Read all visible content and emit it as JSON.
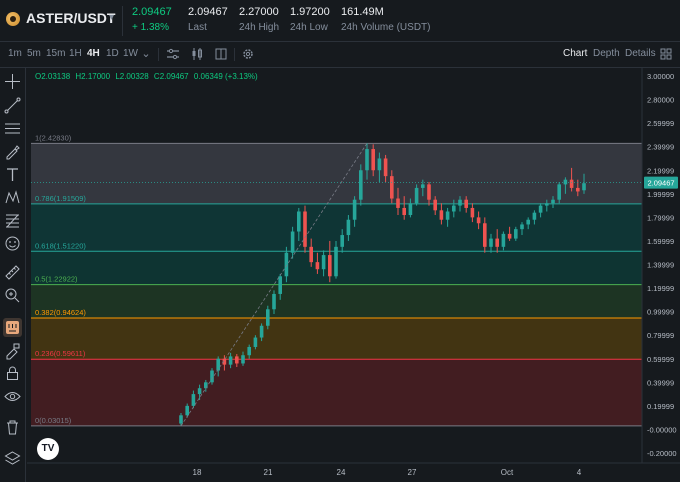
{
  "header": {
    "pair": "ASTER/USDT",
    "last_price": "2.09467",
    "change_pct": "+ 1.38%",
    "stats": [
      {
        "value": "2.09467",
        "label": "Last"
      },
      {
        "value": "2.27000",
        "label": "24h High"
      },
      {
        "value": "1.97200",
        "label": "24h Low"
      },
      {
        "value": "161.49M",
        "label": "24h Volume (USDT)"
      }
    ]
  },
  "toolbar": {
    "timeframes": [
      "1m",
      "5m",
      "15m",
      "1H",
      "4H",
      "1D",
      "1W"
    ],
    "active_timeframe": "4H",
    "view_tabs": [
      "Chart",
      "Depth",
      "Details"
    ],
    "active_view": "Chart"
  },
  "ohlc": {
    "open": "O2.03138",
    "high": "H2.17000",
    "low": "L2.00328",
    "close": "C2.09467",
    "change": "0.06349 (+3.13%)"
  },
  "price_axis": {
    "labels": [
      "3.00000",
      "2.80000",
      "2.59999",
      "2.39999",
      "2.19999",
      "1.99999",
      "1.79999",
      "1.59999",
      "1.39999",
      "1.19999",
      "0.99999",
      "0.79999",
      "0.59999",
      "0.39999",
      "0.19999",
      "-0.00000",
      "-0.20000"
    ],
    "current_price": "2.09467"
  },
  "time_axis": {
    "labels": [
      "18",
      "21",
      "24",
      "27",
      "Oct",
      "4"
    ]
  },
  "fibonacci": {
    "levels": [
      {
        "label": "1(2.42830)",
        "price": 2.4283,
        "color": "#787b86"
      },
      {
        "label": "0.786(1.91509)",
        "price": 1.91509,
        "color": "#26a69a"
      },
      {
        "label": "0.618(1.51220)",
        "price": 1.5122,
        "color": "#26a69a"
      },
      {
        "label": "0.5(1.22922)",
        "price": 1.22922,
        "color": "#4caf50"
      },
      {
        "label": "0.382(0.94624)",
        "price": 0.94624,
        "color": "#ff9800"
      },
      {
        "label": "0.236(0.59611)",
        "price": 0.59611,
        "color": "#f23645"
      },
      {
        "label": "0(0.03015)",
        "price": 0.03015,
        "color": "#787b86"
      }
    ],
    "zone_colors": [
      "#3a3d45",
      "#0e3b3a",
      "#0d3a36",
      "#1e3a24",
      "#4a3a10",
      "#4a1e22"
    ]
  },
  "chart_data": {
    "type": "candlestick",
    "series": [
      {
        "o": 0.05,
        "h": 0.14,
        "l": 0.03,
        "c": 0.12
      },
      {
        "o": 0.12,
        "h": 0.22,
        "l": 0.1,
        "c": 0.2
      },
      {
        "o": 0.2,
        "h": 0.33,
        "l": 0.18,
        "c": 0.3
      },
      {
        "o": 0.3,
        "h": 0.38,
        "l": 0.25,
        "c": 0.35
      },
      {
        "o": 0.35,
        "h": 0.42,
        "l": 0.32,
        "c": 0.4
      },
      {
        "o": 0.4,
        "h": 0.52,
        "l": 0.38,
        "c": 0.5
      },
      {
        "o": 0.5,
        "h": 0.62,
        "l": 0.45,
        "c": 0.6
      },
      {
        "o": 0.6,
        "h": 0.63,
        "l": 0.5,
        "c": 0.55
      },
      {
        "o": 0.55,
        "h": 0.65,
        "l": 0.52,
        "c": 0.62
      },
      {
        "o": 0.62,
        "h": 0.64,
        "l": 0.53,
        "c": 0.56
      },
      {
        "o": 0.56,
        "h": 0.66,
        "l": 0.54,
        "c": 0.63
      },
      {
        "o": 0.63,
        "h": 0.72,
        "l": 0.6,
        "c": 0.7
      },
      {
        "o": 0.7,
        "h": 0.8,
        "l": 0.68,
        "c": 0.78
      },
      {
        "o": 0.78,
        "h": 0.9,
        "l": 0.75,
        "c": 0.88
      },
      {
        "o": 0.88,
        "h": 1.05,
        "l": 0.85,
        "c": 1.02
      },
      {
        "o": 1.02,
        "h": 1.18,
        "l": 0.98,
        "c": 1.15
      },
      {
        "o": 1.15,
        "h": 1.32,
        "l": 1.1,
        "c": 1.3
      },
      {
        "o": 1.3,
        "h": 1.55,
        "l": 1.25,
        "c": 1.5
      },
      {
        "o": 1.5,
        "h": 1.72,
        "l": 1.45,
        "c": 1.68
      },
      {
        "o": 1.68,
        "h": 1.88,
        "l": 1.6,
        "c": 1.85
      },
      {
        "o": 1.85,
        "h": 1.9,
        "l": 1.5,
        "c": 1.55
      },
      {
        "o": 1.55,
        "h": 1.62,
        "l": 1.38,
        "c": 1.42
      },
      {
        "o": 1.42,
        "h": 1.5,
        "l": 1.32,
        "c": 1.36
      },
      {
        "o": 1.36,
        "h": 1.52,
        "l": 1.3,
        "c": 1.48
      },
      {
        "o": 1.48,
        "h": 1.6,
        "l": 1.25,
        "c": 1.3
      },
      {
        "o": 1.3,
        "h": 1.6,
        "l": 1.28,
        "c": 1.55
      },
      {
        "o": 1.55,
        "h": 1.7,
        "l": 1.5,
        "c": 1.65
      },
      {
        "o": 1.65,
        "h": 1.82,
        "l": 1.6,
        "c": 1.78
      },
      {
        "o": 1.78,
        "h": 1.98,
        "l": 1.72,
        "c": 1.95
      },
      {
        "o": 1.95,
        "h": 2.25,
        "l": 1.9,
        "c": 2.2
      },
      {
        "o": 2.2,
        "h": 2.43,
        "l": 2.12,
        "c": 2.38
      },
      {
        "o": 2.38,
        "h": 2.42,
        "l": 2.15,
        "c": 2.2
      },
      {
        "o": 2.2,
        "h": 2.35,
        "l": 2.1,
        "c": 2.3
      },
      {
        "o": 2.3,
        "h": 2.33,
        "l": 2.1,
        "c": 2.15
      },
      {
        "o": 2.15,
        "h": 2.2,
        "l": 1.92,
        "c": 1.96
      },
      {
        "o": 1.96,
        "h": 2.05,
        "l": 1.82,
        "c": 1.88
      },
      {
        "o": 1.88,
        "h": 1.98,
        "l": 1.78,
        "c": 1.82
      },
      {
        "o": 1.82,
        "h": 1.96,
        "l": 1.8,
        "c": 1.92
      },
      {
        "o": 1.92,
        "h": 2.08,
        "l": 1.9,
        "c": 2.05
      },
      {
        "o": 2.05,
        "h": 2.12,
        "l": 1.98,
        "c": 2.08
      },
      {
        "o": 2.08,
        "h": 2.1,
        "l": 1.9,
        "c": 1.95
      },
      {
        "o": 1.95,
        "h": 1.98,
        "l": 1.82,
        "c": 1.86
      },
      {
        "o": 1.86,
        "h": 1.92,
        "l": 1.74,
        "c": 1.78
      },
      {
        "o": 1.78,
        "h": 1.88,
        "l": 1.72,
        "c": 1.85
      },
      {
        "o": 1.85,
        "h": 1.95,
        "l": 1.8,
        "c": 1.9
      },
      {
        "o": 1.9,
        "h": 1.98,
        "l": 1.85,
        "c": 1.95
      },
      {
        "o": 1.95,
        "h": 1.98,
        "l": 1.84,
        "c": 1.88
      },
      {
        "o": 1.88,
        "h": 1.92,
        "l": 1.76,
        "c": 1.8
      },
      {
        "o": 1.8,
        "h": 1.85,
        "l": 1.7,
        "c": 1.75
      },
      {
        "o": 1.75,
        "h": 1.8,
        "l": 1.5,
        "c": 1.55
      },
      {
        "o": 1.55,
        "h": 1.66,
        "l": 1.5,
        "c": 1.62
      },
      {
        "o": 1.62,
        "h": 1.7,
        "l": 1.5,
        "c": 1.55
      },
      {
        "o": 1.55,
        "h": 1.68,
        "l": 1.52,
        "c": 1.66
      },
      {
        "o": 1.66,
        "h": 1.72,
        "l": 1.6,
        "c": 1.62
      },
      {
        "o": 1.62,
        "h": 1.72,
        "l": 1.6,
        "c": 1.7
      },
      {
        "o": 1.7,
        "h": 1.76,
        "l": 1.65,
        "c": 1.74
      },
      {
        "o": 1.74,
        "h": 1.8,
        "l": 1.7,
        "c": 1.78
      },
      {
        "o": 1.78,
        "h": 1.86,
        "l": 1.74,
        "c": 1.84
      },
      {
        "o": 1.84,
        "h": 1.92,
        "l": 1.8,
        "c": 1.9
      },
      {
        "o": 1.9,
        "h": 1.95,
        "l": 1.85,
        "c": 1.92
      },
      {
        "o": 1.92,
        "h": 1.98,
        "l": 1.88,
        "c": 1.95
      },
      {
        "o": 1.95,
        "h": 2.1,
        "l": 1.92,
        "c": 2.08
      },
      {
        "o": 2.08,
        "h": 2.14,
        "l": 2.0,
        "c": 2.12
      },
      {
        "o": 2.12,
        "h": 2.22,
        "l": 2.02,
        "c": 2.05
      },
      {
        "o": 2.05,
        "h": 2.12,
        "l": 1.98,
        "c": 2.02
      },
      {
        "o": 2.03,
        "h": 2.17,
        "l": 2.0,
        "c": 2.09
      }
    ]
  }
}
